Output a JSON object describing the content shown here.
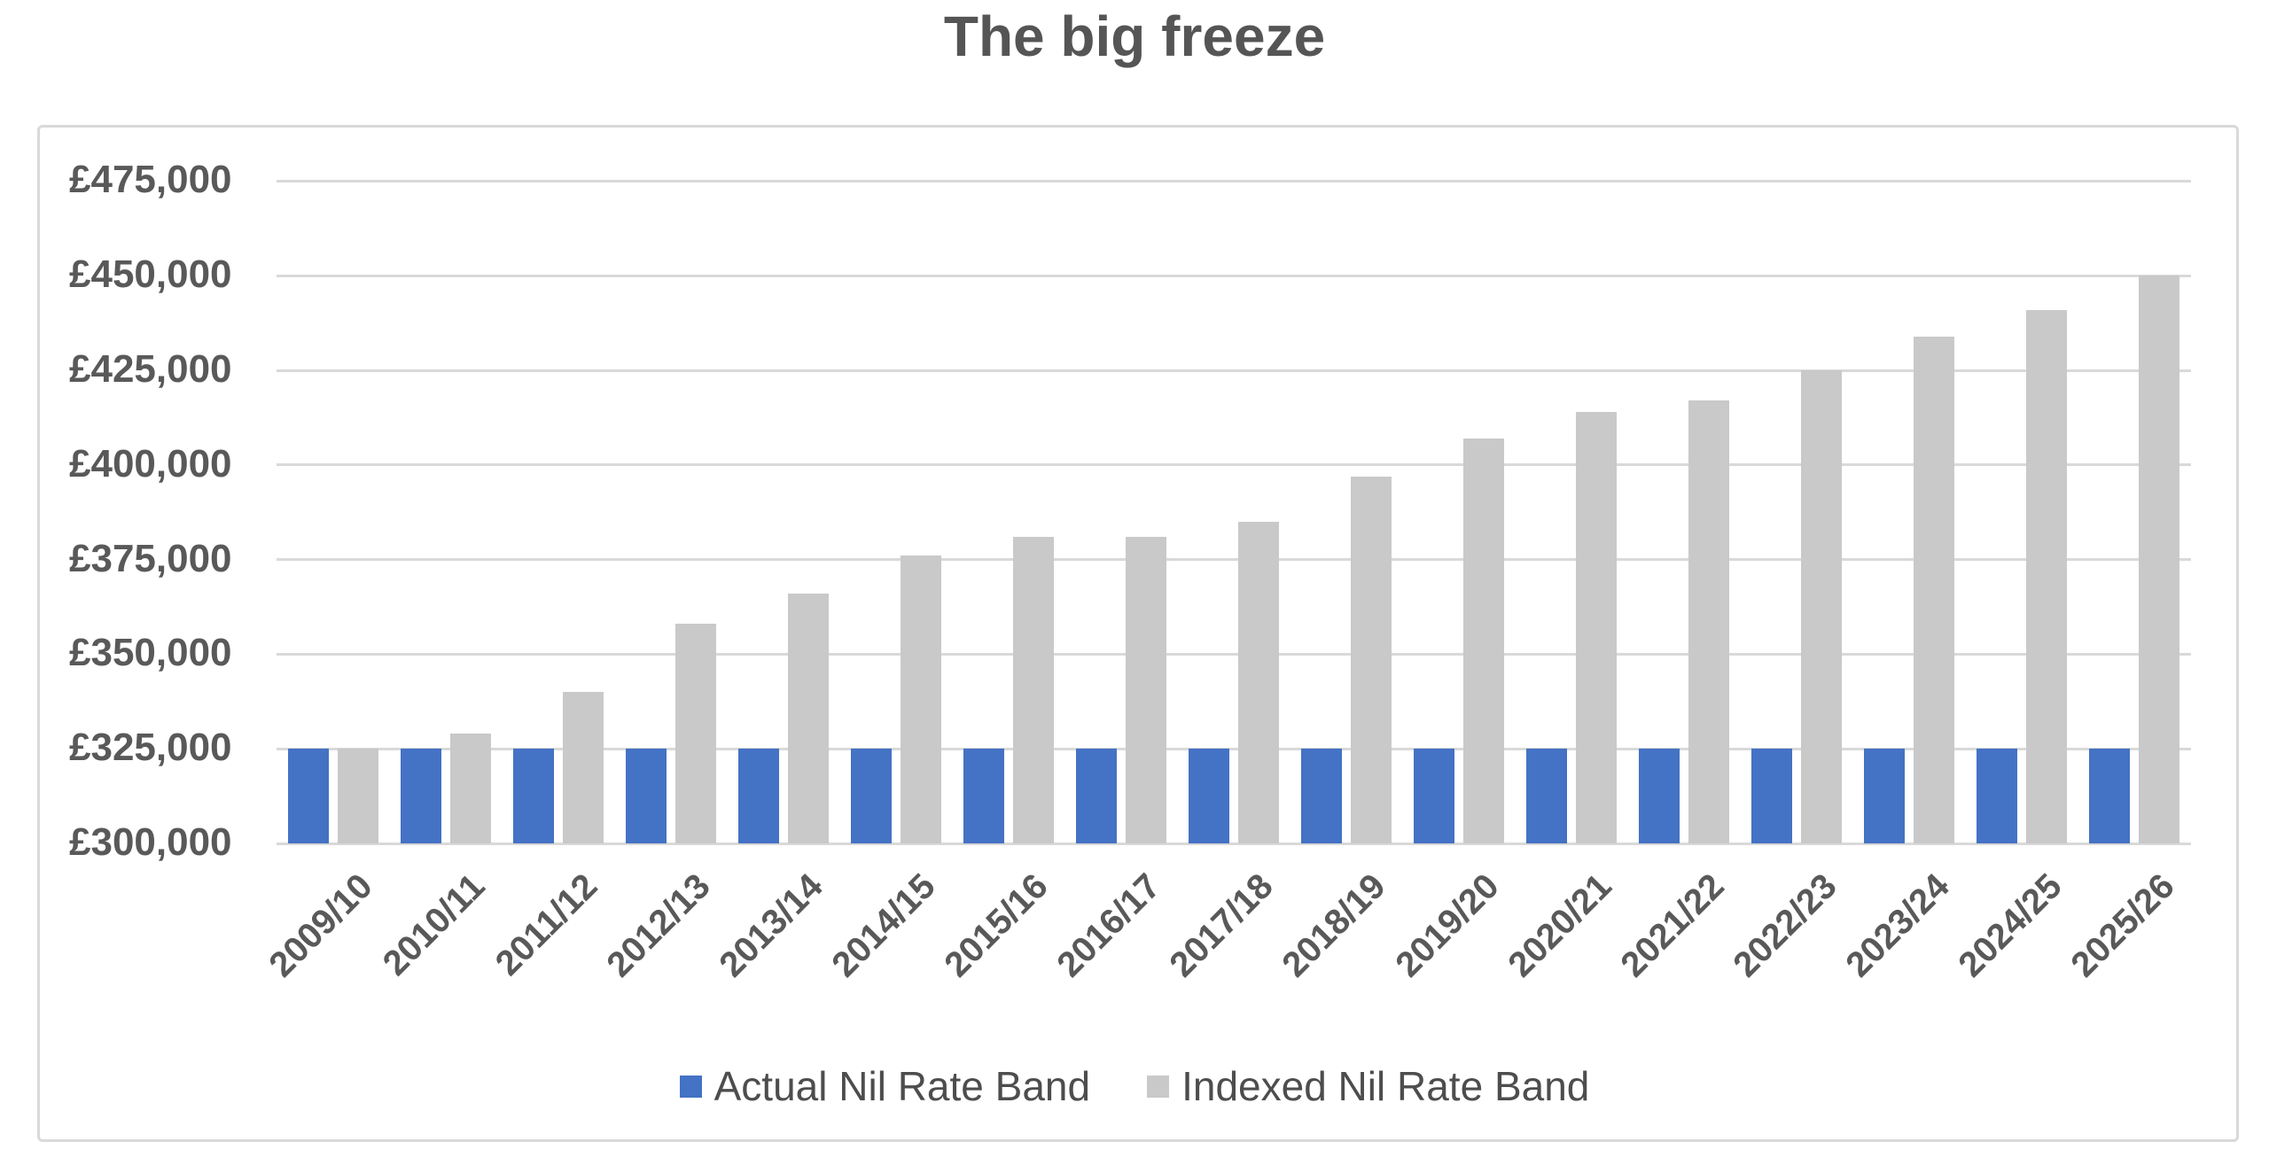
{
  "title": "The big freeze",
  "chart_data": {
    "type": "bar",
    "title": "The big freeze",
    "categories": [
      "2009/10",
      "2010/11",
      "2011/12",
      "2012/13",
      "2013/14",
      "2014/15",
      "2015/16",
      "2016/17",
      "2017/18",
      "2018/19",
      "2019/20",
      "2020/21",
      "2021/22",
      "2022/23",
      "2023/24",
      "2024/25",
      "2025/26"
    ],
    "series": [
      {
        "name": "Actual Nil Rate Band",
        "color": "#4472C4",
        "values": [
          325000,
          325000,
          325000,
          325000,
          325000,
          325000,
          325000,
          325000,
          325000,
          325000,
          325000,
          325000,
          325000,
          325000,
          325000,
          325000,
          325000
        ]
      },
      {
        "name": "Indexed Nil Rate Band",
        "color": "#C9C9C9",
        "values": [
          325000,
          329000,
          340000,
          358000,
          366000,
          376000,
          381000,
          381000,
          385000,
          397000,
          407000,
          414000,
          417000,
          425000,
          434000,
          441000,
          450000
        ]
      }
    ],
    "xlabel": "",
    "ylabel": "",
    "ylim": [
      300000,
      475000
    ],
    "y_tick_step": 25000,
    "y_ticks": [
      {
        "value": 475000,
        "label": "£475,000"
      },
      {
        "value": 450000,
        "label": "£450,000"
      },
      {
        "value": 425000,
        "label": "£425,000"
      },
      {
        "value": 400000,
        "label": "£400,000"
      },
      {
        "value": 375000,
        "label": "£375,000"
      },
      {
        "value": 350000,
        "label": "£350,000"
      },
      {
        "value": 325000,
        "label": "£325,000"
      },
      {
        "value": 300000,
        "label": "£300,000"
      }
    ],
    "grid": "horizontal",
    "gridline_color": "#D9D9D9",
    "legend_position": "bottom",
    "axis_label_color": "#595959",
    "title_color": "#555555"
  }
}
